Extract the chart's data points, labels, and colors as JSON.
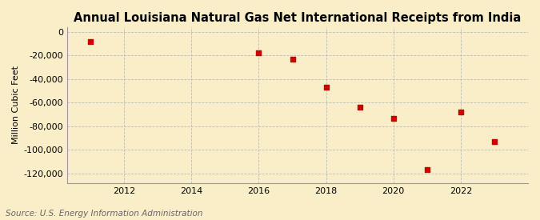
{
  "title": "Annual Louisiana Natural Gas Net International Receipts from India",
  "ylabel": "Million Cubic Feet",
  "source": "Source: U.S. Energy Information Administration",
  "years": [
    2011,
    2016,
    2017,
    2018,
    2019,
    2020,
    2021,
    2022,
    2023
  ],
  "values": [
    -8000,
    -18000,
    -23000,
    -47000,
    -64000,
    -73000,
    -117000,
    -68000,
    -93000
  ],
  "xlim": [
    2010.3,
    2024.0
  ],
  "ylim": [
    -128000,
    4000
  ],
  "yticks": [
    0,
    -20000,
    -40000,
    -60000,
    -80000,
    -100000,
    -120000
  ],
  "xticks": [
    2012,
    2014,
    2016,
    2018,
    2020,
    2022
  ],
  "marker_color": "#cc0000",
  "marker": "s",
  "marker_size": 4,
  "bg_color": "#faeec8",
  "plot_bg_color": "#faeec8",
  "grid_color": "#bbbbbb",
  "title_fontsize": 10.5,
  "title_fontweight": "bold",
  "axis_fontsize": 8,
  "tick_fontsize": 8,
  "source_fontsize": 7.5
}
